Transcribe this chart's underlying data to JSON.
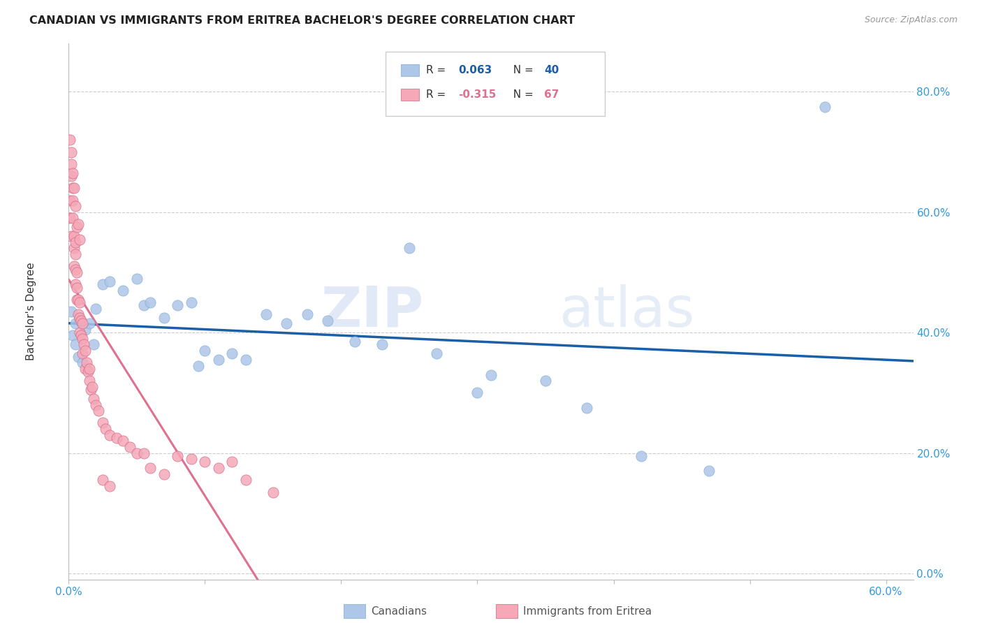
{
  "title": "CANADIAN VS IMMIGRANTS FROM ERITREA BACHELOR'S DEGREE CORRELATION CHART",
  "source": "Source: ZipAtlas.com",
  "ylabel": "Bachelor's Degree",
  "xlim": [
    0.0,
    0.62
  ],
  "ylim": [
    -0.01,
    0.88
  ],
  "x_ticks": [
    0.0,
    0.1,
    0.2,
    0.3,
    0.4,
    0.5,
    0.6
  ],
  "y_ticks": [
    0.0,
    0.2,
    0.4,
    0.6,
    0.8
  ],
  "x_tick_labels": [
    "0.0%",
    "",
    "",
    "",
    "",
    "",
    "60.0%"
  ],
  "y_tick_labels": [
    "0.0%",
    "20.0%",
    "40.0%",
    "60.0%",
    "80.0%"
  ],
  "canadian_color": "#aec6e8",
  "eritrea_color": "#f4a8b8",
  "canadian_line_color": "#1a5fa8",
  "eritrea_line_color": "#e07090",
  "watermark_zip": "ZIP",
  "watermark_atlas": "atlas",
  "canadians_label": "Canadians",
  "eritrea_label": "Immigrants from Eritrea",
  "canadian_R": 0.063,
  "canadian_N": 40,
  "eritrea_R": -0.315,
  "eritrea_N": 67,
  "canadian_x": [
    0.002,
    0.003,
    0.005,
    0.005,
    0.007,
    0.008,
    0.01,
    0.012,
    0.015,
    0.018,
    0.02,
    0.025,
    0.03,
    0.04,
    0.05,
    0.055,
    0.06,
    0.07,
    0.08,
    0.09,
    0.095,
    0.1,
    0.11,
    0.12,
    0.13,
    0.145,
    0.16,
    0.175,
    0.19,
    0.21,
    0.23,
    0.25,
    0.27,
    0.3,
    0.31,
    0.35,
    0.38,
    0.42,
    0.47,
    0.555
  ],
  "canadian_y": [
    0.435,
    0.395,
    0.38,
    0.415,
    0.36,
    0.42,
    0.35,
    0.405,
    0.415,
    0.38,
    0.44,
    0.48,
    0.485,
    0.47,
    0.49,
    0.445,
    0.45,
    0.425,
    0.445,
    0.45,
    0.345,
    0.37,
    0.355,
    0.365,
    0.355,
    0.43,
    0.415,
    0.43,
    0.42,
    0.385,
    0.38,
    0.54,
    0.365,
    0.3,
    0.33,
    0.32,
    0.275,
    0.195,
    0.17,
    0.775
  ],
  "eritrea_x": [
    0.001,
    0.001,
    0.002,
    0.002,
    0.002,
    0.003,
    0.003,
    0.003,
    0.004,
    0.004,
    0.004,
    0.005,
    0.005,
    0.005,
    0.005,
    0.006,
    0.006,
    0.006,
    0.007,
    0.007,
    0.008,
    0.008,
    0.008,
    0.009,
    0.009,
    0.01,
    0.01,
    0.01,
    0.011,
    0.012,
    0.012,
    0.013,
    0.014,
    0.015,
    0.015,
    0.016,
    0.017,
    0.018,
    0.02,
    0.022,
    0.025,
    0.027,
    0.03,
    0.035,
    0.04,
    0.045,
    0.05,
    0.055,
    0.06,
    0.07,
    0.08,
    0.09,
    0.1,
    0.11,
    0.12,
    0.13,
    0.001,
    0.002,
    0.003,
    0.004,
    0.005,
    0.006,
    0.007,
    0.008,
    0.025,
    0.03,
    0.15
  ],
  "eritrea_y": [
    0.62,
    0.59,
    0.68,
    0.66,
    0.56,
    0.64,
    0.62,
    0.59,
    0.56,
    0.54,
    0.51,
    0.55,
    0.53,
    0.505,
    0.48,
    0.5,
    0.475,
    0.455,
    0.455,
    0.43,
    0.45,
    0.425,
    0.4,
    0.42,
    0.395,
    0.415,
    0.39,
    0.365,
    0.38,
    0.37,
    0.34,
    0.35,
    0.335,
    0.34,
    0.32,
    0.305,
    0.31,
    0.29,
    0.28,
    0.27,
    0.25,
    0.24,
    0.23,
    0.225,
    0.22,
    0.21,
    0.2,
    0.2,
    0.175,
    0.165,
    0.195,
    0.19,
    0.185,
    0.175,
    0.185,
    0.155,
    0.72,
    0.7,
    0.665,
    0.64,
    0.61,
    0.575,
    0.58,
    0.555,
    0.155,
    0.145,
    0.135
  ]
}
